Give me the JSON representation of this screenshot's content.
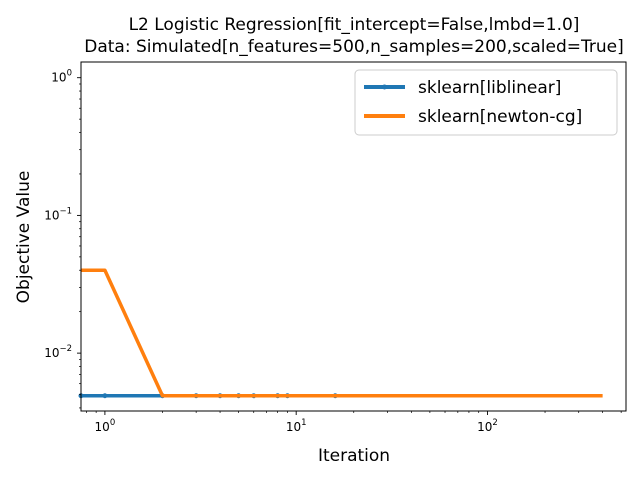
{
  "chart_data": {
    "type": "line",
    "title_line1": "L2 Logistic Regression[fit_intercept=False,lmbd=1.0]",
    "title_line2": "Data: Simulated[n_features=500,n_samples=200,scaled=True]",
    "xlabel": "Iteration",
    "ylabel": "Objective Value",
    "xscale": "log",
    "yscale": "log",
    "xlim": [
      0.75,
      530
    ],
    "ylim": [
      0.0038,
      1.3
    ],
    "xticks": [
      {
        "base": "10",
        "exp": "0",
        "value": 1
      },
      {
        "base": "10",
        "exp": "1",
        "value": 10
      },
      {
        "base": "10",
        "exp": "2",
        "value": 100
      }
    ],
    "yticks": [
      {
        "base": "10",
        "exp": "−2",
        "value": 0.01
      },
      {
        "base": "10",
        "exp": "−1",
        "value": 0.1
      },
      {
        "base": "10",
        "exp": "0",
        "value": 1
      }
    ],
    "grid": false,
    "legend_position": "top-right",
    "series": [
      {
        "name": "sklearn[liblinear]",
        "color": "#1f77b4",
        "marker": "dot",
        "x": [
          0.75,
          1,
          2,
          3,
          4,
          5,
          6,
          8,
          9,
          16
        ],
        "y": [
          0.0049,
          0.0049,
          0.0049,
          0.0049,
          0.0049,
          0.0049,
          0.0049,
          0.0049,
          0.0049,
          0.0049
        ]
      },
      {
        "name": "sklearn[newton-cg]",
        "color": "#ff7f0e",
        "marker": "none",
        "x": [
          0.75,
          1,
          2,
          3,
          5,
          10,
          20,
          50,
          100,
          200,
          400
        ],
        "y": [
          0.04,
          0.04,
          0.0049,
          0.0049,
          0.0049,
          0.0049,
          0.0049,
          0.0049,
          0.0049,
          0.0049,
          0.0049
        ]
      }
    ]
  }
}
